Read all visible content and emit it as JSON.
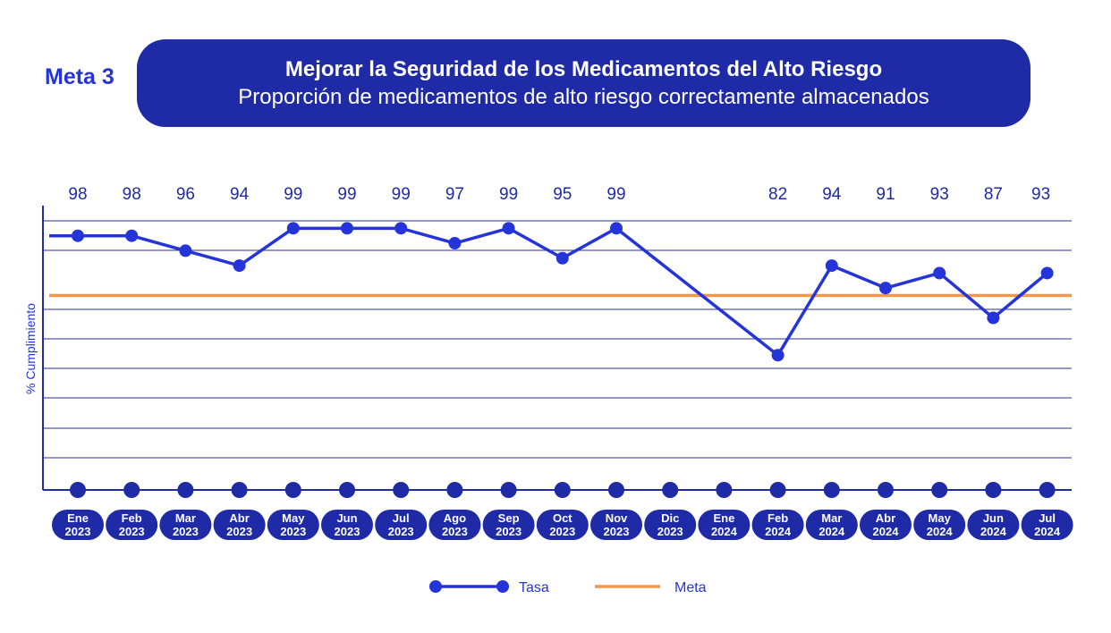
{
  "header": {
    "meta_label": "Meta 3",
    "title": "Mejorar la Seguridad de los Medicamentos del Alto Riesgo",
    "subtitle": "Proporción de medicamentos de alto riesgo correctamente almacenados"
  },
  "colors": {
    "series": "#2534d8",
    "series_dark": "#1e2aa6",
    "target": "#f5964a",
    "grid": "#2a3290",
    "text": "#2534d8"
  },
  "chart_data": {
    "type": "line",
    "ylabel": "% Cumplimiento",
    "ylim": [
      60,
      100
    ],
    "grid": true,
    "legend_position": "bottom-center",
    "categories": [
      {
        "month": "Ene",
        "year": "2023"
      },
      {
        "month": "Feb",
        "year": "2023"
      },
      {
        "month": "Mar",
        "year": "2023"
      },
      {
        "month": "Abr",
        "year": "2023"
      },
      {
        "month": "May",
        "year": "2023"
      },
      {
        "month": "Jun",
        "year": "2023"
      },
      {
        "month": "Jul",
        "year": "2023"
      },
      {
        "month": "Ago",
        "year": "2023"
      },
      {
        "month": "Sep",
        "year": "2023"
      },
      {
        "month": "Oct",
        "year": "2023"
      },
      {
        "month": "Nov",
        "year": "2023"
      },
      {
        "month": "Dic",
        "year": "2023"
      },
      {
        "month": "Ene",
        "year": "2024"
      },
      {
        "month": "Feb",
        "year": "2024"
      },
      {
        "month": "Mar",
        "year": "2024"
      },
      {
        "month": "Abr",
        "year": "2024"
      },
      {
        "month": "May",
        "year": "2024"
      },
      {
        "month": "Jun",
        "year": "2024"
      },
      {
        "month": "Jul",
        "year": "2024"
      }
    ],
    "series": [
      {
        "name": "Tasa",
        "values": [
          98,
          98,
          96,
          94,
          99,
          99,
          99,
          97,
          99,
          95,
          99,
          null,
          null,
          82,
          94,
          91,
          93,
          87,
          93
        ],
        "labels": [
          "98",
          "98",
          "96",
          "94",
          "99",
          "99",
          "99",
          "97",
          "99",
          "95",
          "99",
          "",
          "",
          "82",
          "94",
          "91",
          "93",
          "87",
          "93"
        ]
      },
      {
        "name": "Meta",
        "constant": 90
      }
    ]
  }
}
